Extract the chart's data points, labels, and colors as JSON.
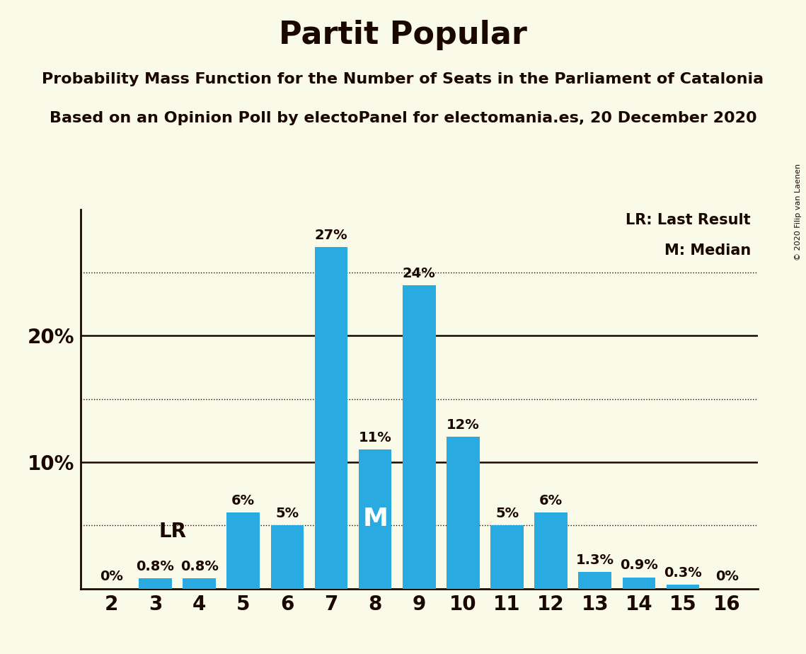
{
  "title": "Partit Popular",
  "subtitle1": "Probability Mass Function for the Number of Seats in the Parliament of Catalonia",
  "subtitle2": "Based on an Opinion Poll by electoPanel for electomania.es, 20 December 2020",
  "copyright": "© 2020 Filip van Laenen",
  "seats": [
    2,
    3,
    4,
    5,
    6,
    7,
    8,
    9,
    10,
    11,
    12,
    13,
    14,
    15,
    16
  ],
  "probabilities": [
    0.0,
    0.8,
    0.8,
    6.0,
    5.0,
    27.0,
    11.0,
    24.0,
    12.0,
    5.0,
    6.0,
    1.3,
    0.9,
    0.3,
    0.0
  ],
  "bar_labels": [
    "0%",
    "0.8%",
    "0.8%",
    "6%",
    "5%",
    "27%",
    "11%",
    "24%",
    "12%",
    "5%",
    "6%",
    "1.3%",
    "0.9%",
    "0.3%",
    "0%"
  ],
  "bar_color": "#29ABE2",
  "background_color": "#FAFAE8",
  "text_color": "#1a0800",
  "dotted_lines": [
    5,
    15,
    25
  ],
  "solid_lines": [
    10,
    20
  ],
  "LR_seat": 4,
  "Median_seat": 8,
  "legend_LR": "LR: Last Result",
  "legend_M": "M: Median",
  "title_fontsize": 32,
  "subtitle_fontsize": 16,
  "label_fontsize": 14,
  "axis_fontsize": 20,
  "legend_fontsize": 15,
  "copyright_fontsize": 8
}
